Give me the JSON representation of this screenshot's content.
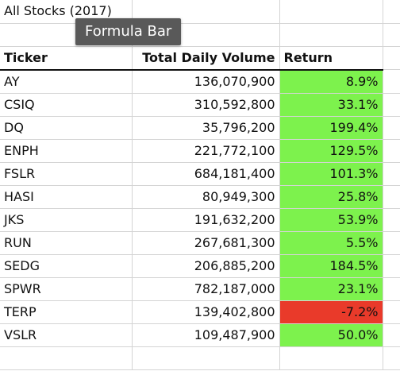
{
  "sheet": {
    "title": "All Stocks (2017)",
    "headers": {
      "ticker": "Ticker",
      "volume": "Total Daily Volume",
      "return": "Return"
    },
    "rows": [
      {
        "ticker": "AY",
        "volume": "136,070,900",
        "return": "8.9%",
        "status": "positive"
      },
      {
        "ticker": "CSIQ",
        "volume": "310,592,800",
        "return": "33.1%",
        "status": "positive"
      },
      {
        "ticker": "DQ",
        "volume": "35,796,200",
        "return": "199.4%",
        "status": "positive"
      },
      {
        "ticker": "ENPH",
        "volume": "221,772,100",
        "return": "129.5%",
        "status": "positive"
      },
      {
        "ticker": "FSLR",
        "volume": "684,181,400",
        "return": "101.3%",
        "status": "positive"
      },
      {
        "ticker": "HASI",
        "volume": "80,949,300",
        "return": "25.8%",
        "status": "positive"
      },
      {
        "ticker": "JKS",
        "volume": "191,632,200",
        "return": "53.9%",
        "status": "positive"
      },
      {
        "ticker": "RUN",
        "volume": "267,681,300",
        "return": "5.5%",
        "status": "positive"
      },
      {
        "ticker": "SEDG",
        "volume": "206,885,200",
        "return": "184.5%",
        "status": "positive"
      },
      {
        "ticker": "SPWR",
        "volume": "782,187,000",
        "return": "23.1%",
        "status": "positive"
      },
      {
        "ticker": "TERP",
        "volume": "139,402,800",
        "return": "-7.2%",
        "status": "negative"
      },
      {
        "ticker": "VSLR",
        "volume": "109,487,900",
        "return": "50.0%",
        "status": "positive"
      }
    ]
  },
  "tooltip": {
    "text": "Formula Bar"
  },
  "colors": {
    "positive": "#7df24d",
    "negative": "#e93a2a",
    "tooltip_bg": "#595959"
  }
}
